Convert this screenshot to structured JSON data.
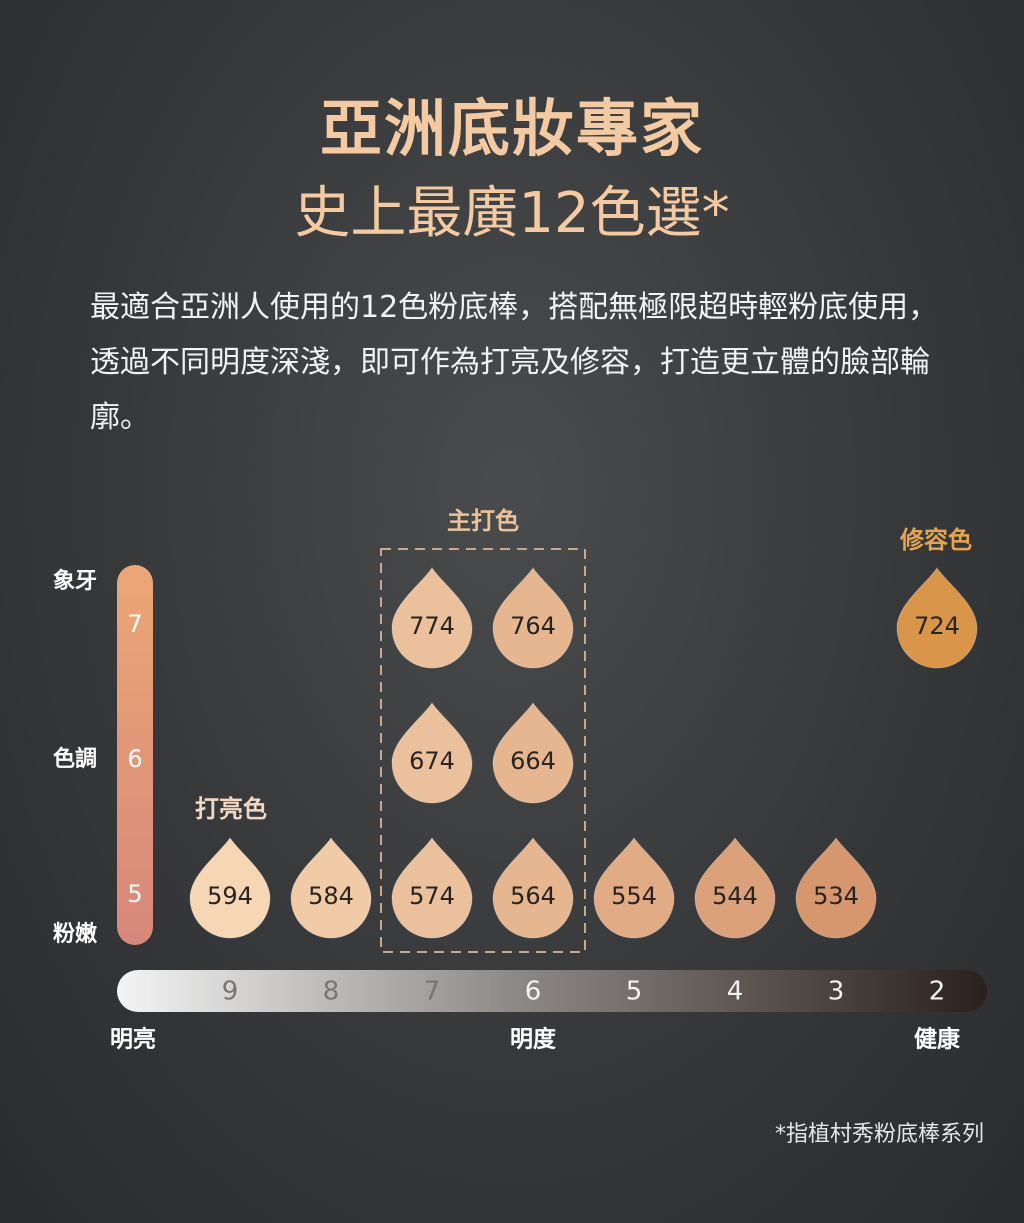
{
  "header": {
    "title": "亞洲底妝專家",
    "subtitle": "史上最廣12色選*"
  },
  "description": "最適合亞洲人使用的12色粉底棒，搭配無極限超時輕粉底使用，透過不同明度深淺，即可作為打亮及修容，打造更立體的臉部輪廓。",
  "labels": {
    "main": "主打色",
    "contour": "修容色",
    "highlight": "打亮色"
  },
  "tone_axis": {
    "top": "象牙",
    "middle": "色調",
    "bottom": "粉嫩",
    "ticks": [
      "7",
      "6",
      "5"
    ]
  },
  "shade_rows": [
    {
      "shades": [
        "774",
        "764",
        "724"
      ]
    },
    {
      "shades": [
        "674",
        "664"
      ]
    },
    {
      "shades": [
        "594",
        "584",
        "574",
        "564",
        "554",
        "544",
        "534"
      ]
    }
  ],
  "brightness_axis": {
    "ticks": [
      "9",
      "8",
      "7",
      "6",
      "5",
      "4",
      "3",
      "2"
    ],
    "left": "明亮",
    "middle": "明度",
    "right": "健康"
  },
  "footnote": "*指植村秀粉底棒系列"
}
